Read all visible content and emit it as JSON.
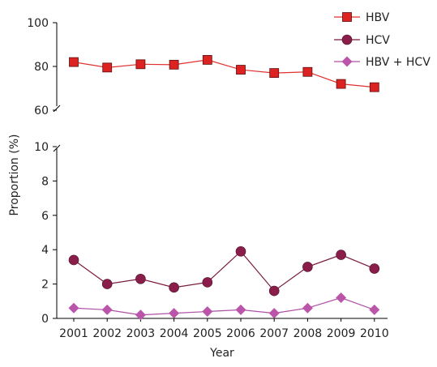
{
  "chart_data": {
    "type": "line",
    "title": "",
    "xlabel": "Year",
    "ylabel": "Proportion (%)",
    "categories": [
      "2001",
      "2002",
      "2003",
      "2004",
      "2005",
      "2006",
      "2007",
      "2008",
      "2009",
      "2010"
    ],
    "y_axis": {
      "broken": true,
      "lower_range": [
        0,
        10
      ],
      "upper_range": [
        60,
        100
      ],
      "lower_ticks": [
        "0",
        "2",
        "4",
        "6",
        "8",
        "10"
      ],
      "upper_ticks": [
        "60",
        "80",
        "100"
      ]
    },
    "grid": false,
    "legend_position": "top-right",
    "series": [
      {
        "name": "HBV",
        "marker": "square",
        "line_color": "#e03030",
        "marker_color": "#dd2222",
        "values": [
          82.0,
          79.5,
          81.0,
          80.8,
          83.0,
          78.5,
          77.0,
          77.5,
          72.0,
          70.5
        ]
      },
      {
        "name": "HCV",
        "marker": "circle",
        "line_color": "#7a1a3e",
        "marker_color": "#8b1d4a",
        "values": [
          3.4,
          2.0,
          2.3,
          1.8,
          2.1,
          3.9,
          1.6,
          3.0,
          3.7,
          2.9
        ]
      },
      {
        "name": "HBV + HCV",
        "marker": "diamond",
        "line_color": "#b04fa6",
        "marker_color": "#bb55aa",
        "values": [
          0.6,
          0.5,
          0.2,
          0.3,
          0.4,
          0.5,
          0.3,
          0.6,
          1.2,
          0.5
        ]
      }
    ]
  }
}
